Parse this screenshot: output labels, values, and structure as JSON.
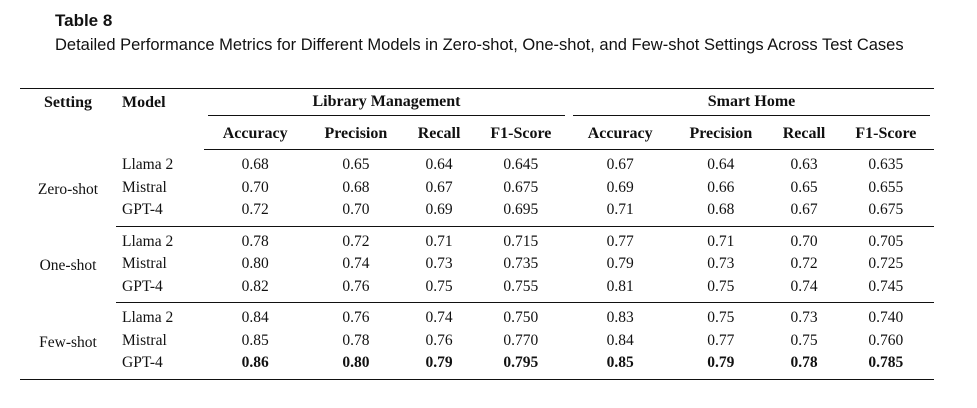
{
  "caption": {
    "label": "Table 8",
    "text": "Detailed Performance Metrics for Different Models in Zero-shot, One-shot, and Few-shot Settings Across Test Cases"
  },
  "headers": {
    "setting": "Setting",
    "model": "Model",
    "group1": "Library Management",
    "group2": "Smart Home",
    "metrics": [
      "Accuracy",
      "Precision",
      "Recall",
      "F1-Score"
    ]
  },
  "groups": [
    {
      "setting": "Zero-shot",
      "rows": [
        {
          "model": "Llama 2",
          "values": [
            "0.68",
            "0.65",
            "0.64",
            "0.645",
            "0.67",
            "0.64",
            "0.63",
            "0.635"
          ]
        },
        {
          "model": "Mistral",
          "values": [
            "0.70",
            "0.68",
            "0.67",
            "0.675",
            "0.69",
            "0.66",
            "0.65",
            "0.655"
          ]
        },
        {
          "model": "GPT-4",
          "values": [
            "0.72",
            "0.70",
            "0.69",
            "0.695",
            "0.71",
            "0.68",
            "0.67",
            "0.675"
          ]
        }
      ]
    },
    {
      "setting": "One-shot",
      "rows": [
        {
          "model": "Llama 2",
          "values": [
            "0.78",
            "0.72",
            "0.71",
            "0.715",
            "0.77",
            "0.71",
            "0.70",
            "0.705"
          ]
        },
        {
          "model": "Mistral",
          "values": [
            "0.80",
            "0.74",
            "0.73",
            "0.735",
            "0.79",
            "0.73",
            "0.72",
            "0.725"
          ]
        },
        {
          "model": "GPT-4",
          "values": [
            "0.82",
            "0.76",
            "0.75",
            "0.755",
            "0.81",
            "0.75",
            "0.74",
            "0.745"
          ]
        }
      ]
    },
    {
      "setting": "Few-shot",
      "rows": [
        {
          "model": "Llama 2",
          "values": [
            "0.84",
            "0.76",
            "0.74",
            "0.750",
            "0.83",
            "0.75",
            "0.73",
            "0.740"
          ]
        },
        {
          "model": "Mistral",
          "values": [
            "0.85",
            "0.78",
            "0.76",
            "0.770",
            "0.84",
            "0.77",
            "0.75",
            "0.760"
          ]
        },
        {
          "model": "GPT-4",
          "values": [
            "0.86",
            "0.80",
            "0.79",
            "0.795",
            "0.85",
            "0.79",
            "0.78",
            "0.785"
          ],
          "bold": true
        }
      ]
    }
  ]
}
